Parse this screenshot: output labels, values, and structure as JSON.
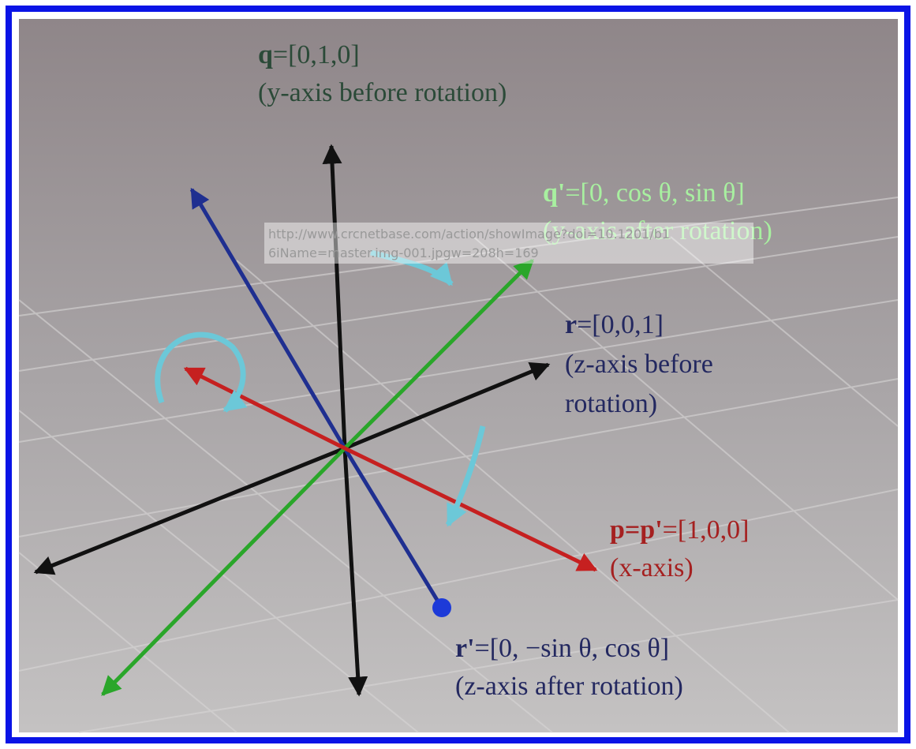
{
  "labels": {
    "q": {
      "symbol": "q",
      "value": "=[0,1,0]",
      "note": "(y-axis before rotation)"
    },
    "q_prime": {
      "symbol": "q'",
      "value": "=[0, cos θ, sin θ]",
      "note": "(y-axis after rotation)"
    },
    "r": {
      "symbol": "r",
      "value": "=[0,0,1]",
      "note_line1": "(z-axis before",
      "note_line2": "rotation)"
    },
    "p": {
      "symbol": "p=p'",
      "value": "=[1,0,0]",
      "note": "(x-axis)"
    },
    "r_prime": {
      "symbol": "r'",
      "value": "=[0, −sin θ, cos θ]",
      "note": "(z-axis after rotation)"
    }
  },
  "watermark": {
    "line1": "http://www.crcnetbase.com/action/showImage?doi=10.1201/b1",
    "line2": "6iName=master.img-001.jpgw=208h=169"
  }
}
